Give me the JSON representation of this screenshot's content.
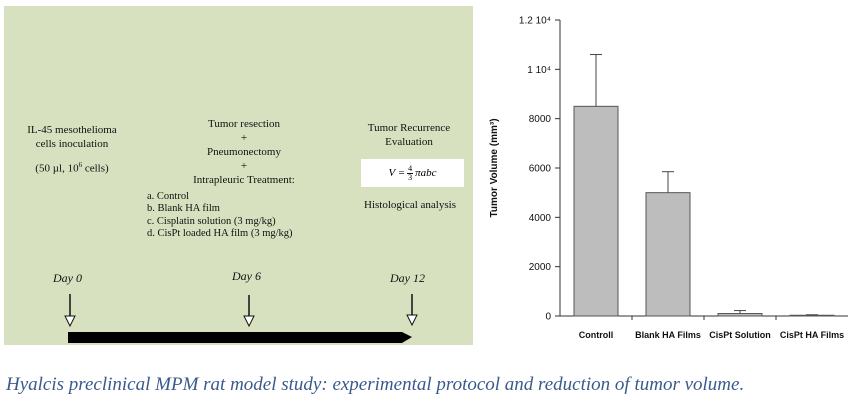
{
  "protocol": {
    "step1": {
      "line1": "IL-45 mesothelioma",
      "line2": "cells inoculation",
      "line3_prefix": "(50 µl, 10",
      "line3_sup": "6",
      "line3_suffix": " cells)"
    },
    "step2": {
      "lines": [
        "Tumor resection",
        "+",
        "Pneumonectomy",
        "+",
        "Intrapleuric Treatment:"
      ],
      "treatments": [
        "a.  Control",
        "b.  Blank HA film",
        "c.  Cisplatin solution (3 mg/kg)",
        "d.  CisPt loaded HA film (3 mg/kg)"
      ]
    },
    "step3": {
      "line1": "Tumor Recurrence",
      "line2": "Evaluation",
      "formula_lhs": "V = ",
      "formula_num": "4",
      "formula_den": "3",
      "formula_rhs": "πabc",
      "histology": "Histological analysis"
    },
    "days": [
      "Day 0",
      "Day 6",
      "Day 12"
    ]
  },
  "chart_data": {
    "type": "bar",
    "categories": [
      "Controll",
      "Blank HA Films",
      "CisPt Solution",
      "CisPt HA Films"
    ],
    "values": [
      8500,
      5000,
      100,
      30
    ],
    "errors": [
      2100,
      850,
      120,
      20
    ],
    "ylabel": "Tumor Volume (mm³)",
    "ylim": [
      0,
      12000
    ],
    "yticks": [
      0,
      2000,
      4000,
      6000,
      8000,
      10000,
      12000
    ],
    "ytick_labels": [
      "0",
      "2000",
      "4000",
      "6000",
      "8000",
      "1 10⁴",
      "1.2 10⁴"
    ],
    "bar_color": "#bdbdbd",
    "grid": false
  },
  "caption": "Hyalcis preclinical MPM rat model study: experimental protocol and reduction of tumor volume."
}
